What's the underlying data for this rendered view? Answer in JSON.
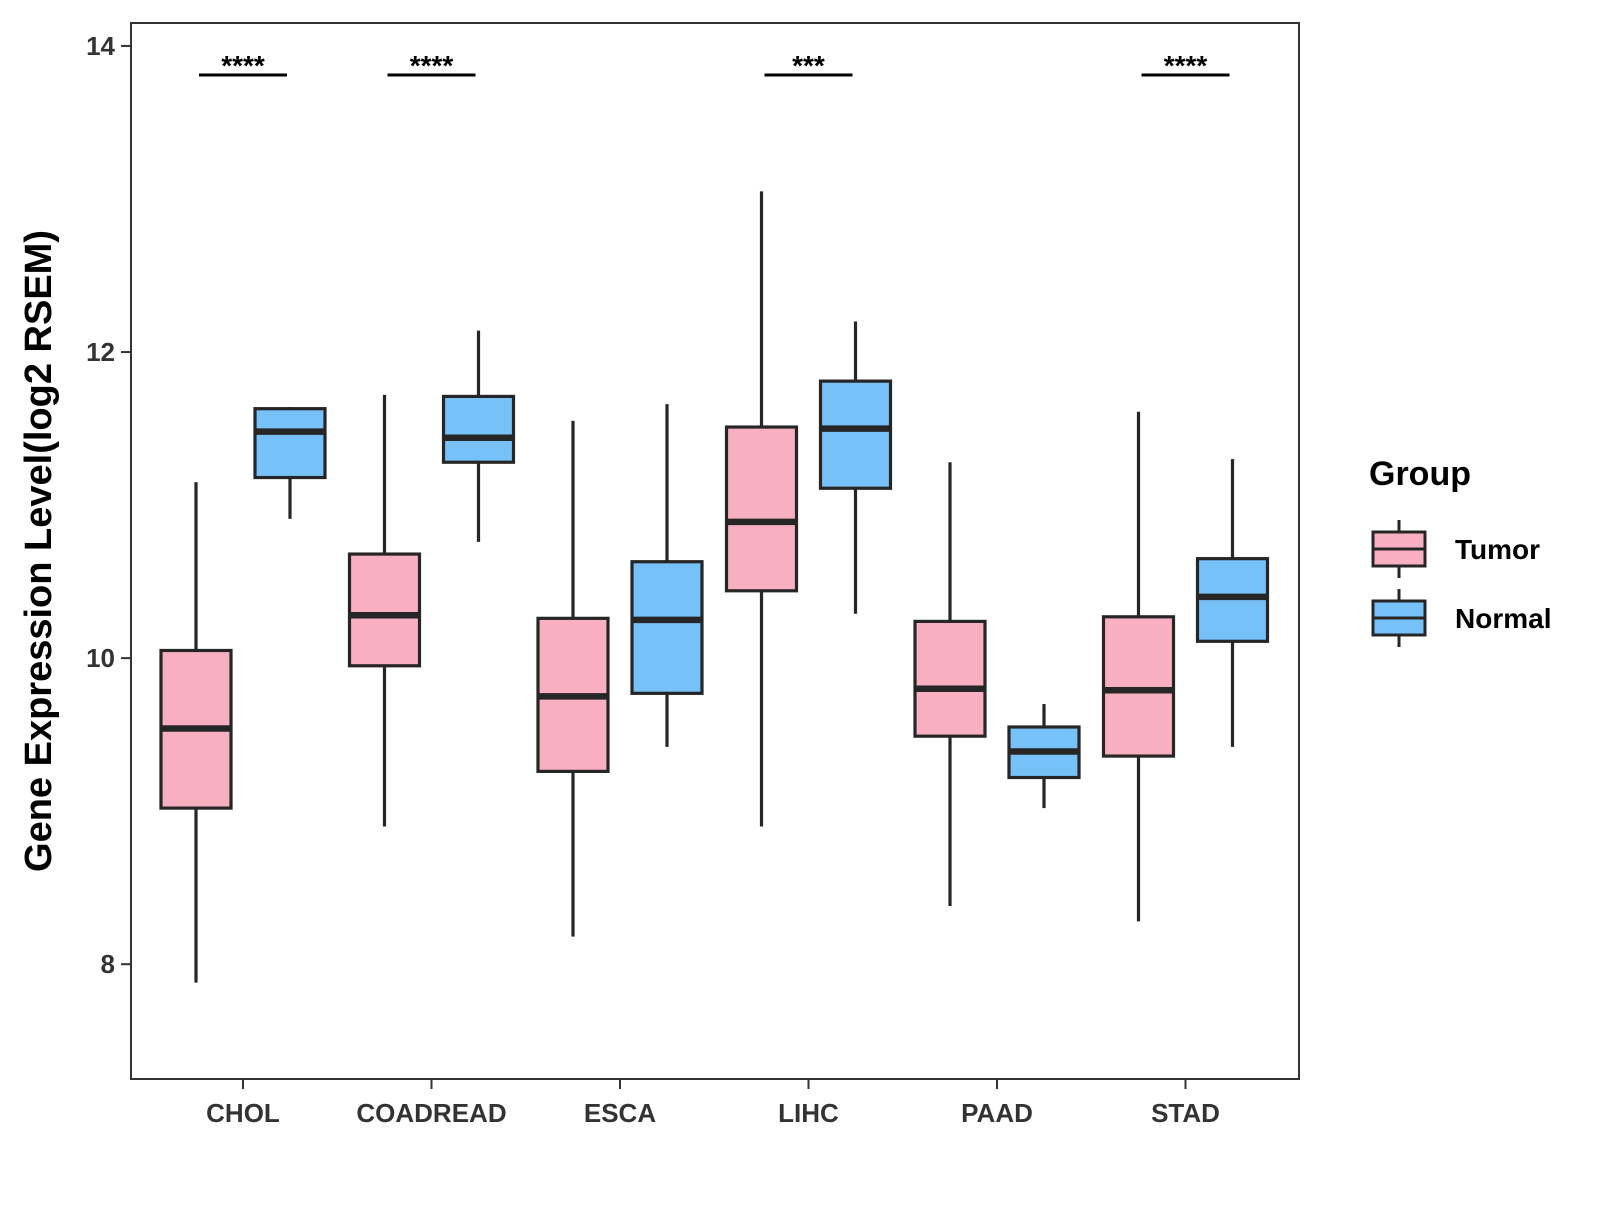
{
  "chart_data": {
    "type": "boxplot",
    "title": "",
    "xlabel": "",
    "ylabel": "Gene Expression Level(log2 RSEM)",
    "ylim": [
      7.25,
      14.15
    ],
    "yticks": [
      8,
      10,
      12,
      14
    ],
    "ytick_labels": [
      "8",
      "10",
      "12",
      "14"
    ],
    "categories": [
      "CHOL",
      "COADREAD",
      "ESCA",
      "LIHC",
      "PAAD",
      "STAD"
    ],
    "grid": false,
    "legend": {
      "title": "Group",
      "position": "right",
      "items": [
        {
          "label": "Tumor",
          "color": "#F9AFC2"
        },
        {
          "label": "Normal",
          "color": "#76C1F7"
        }
      ]
    },
    "series": [
      {
        "name": "Tumor",
        "color": "#F9AFC2",
        "boxes": [
          {
            "category": "CHOL",
            "min": 7.88,
            "q1": 9.02,
            "median": 9.54,
            "q3": 10.05,
            "max": 11.15
          },
          {
            "category": "COADREAD",
            "min": 8.9,
            "q1": 9.95,
            "median": 10.28,
            "q3": 10.68,
            "max": 11.72
          },
          {
            "category": "ESCA",
            "min": 8.18,
            "q1": 9.26,
            "median": 9.75,
            "q3": 10.26,
            "max": 11.55
          },
          {
            "category": "LIHC",
            "min": 8.9,
            "q1": 10.44,
            "median": 10.89,
            "q3": 11.51,
            "max": 13.05
          },
          {
            "category": "PAAD",
            "min": 8.38,
            "q1": 9.49,
            "median": 9.8,
            "q3": 10.24,
            "max": 11.28
          },
          {
            "category": "STAD",
            "min": 8.28,
            "q1": 9.36,
            "median": 9.79,
            "q3": 10.27,
            "max": 11.61
          }
        ]
      },
      {
        "name": "Normal",
        "color": "#76C1F7",
        "boxes": [
          {
            "category": "CHOL",
            "min": 10.91,
            "q1": 11.18,
            "median": 11.48,
            "q3": 11.63,
            "max": 11.64
          },
          {
            "category": "COADREAD",
            "min": 10.76,
            "q1": 11.28,
            "median": 11.44,
            "q3": 11.71,
            "max": 12.14
          },
          {
            "category": "ESCA",
            "min": 9.42,
            "q1": 9.77,
            "median": 10.25,
            "q3": 10.63,
            "max": 11.66
          },
          {
            "category": "LIHC",
            "min": 10.29,
            "q1": 11.11,
            "median": 11.5,
            "q3": 11.81,
            "max": 12.2
          },
          {
            "category": "PAAD",
            "min": 9.02,
            "q1": 9.22,
            "median": 9.39,
            "q3": 9.55,
            "max": 9.7
          },
          {
            "category": "STAD",
            "min": 9.42,
            "q1": 10.11,
            "median": 10.4,
            "q3": 10.65,
            "max": 11.3
          }
        ]
      }
    ],
    "annotations": [
      {
        "category": "CHOL",
        "text": "****"
      },
      {
        "category": "COADREAD",
        "text": "****"
      },
      {
        "category": "LIHC",
        "text": "***"
      },
      {
        "category": "STAD",
        "text": "****"
      }
    ]
  }
}
